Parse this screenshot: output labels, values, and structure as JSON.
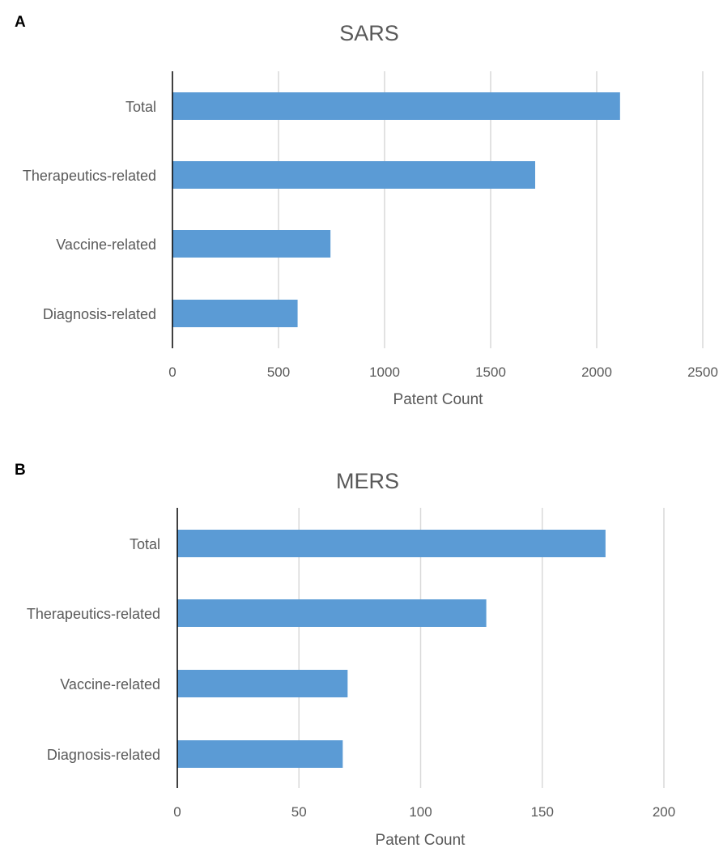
{
  "chart_data": [
    {
      "type": "bar",
      "orientation": "horizontal",
      "panel_label": "A",
      "title": "SARS",
      "xlabel": "Patent Count",
      "ylabel": "",
      "categories": [
        "Total",
        "Therapeutics-related",
        "Vaccine-related",
        "Diagnosis-related"
      ],
      "values": [
        2110,
        1710,
        745,
        590
      ],
      "xlim": [
        0,
        2500
      ],
      "xticks": [
        "0",
        "500",
        "1000",
        "1500",
        "2000",
        "2500"
      ],
      "bar_color": "#5b9bd5",
      "grid": true,
      "legend": "none"
    },
    {
      "type": "bar",
      "orientation": "horizontal",
      "panel_label": "B",
      "title": "MERS",
      "xlabel": "Patent Count",
      "ylabel": "",
      "categories": [
        "Total",
        "Therapeutics-related",
        "Vaccine-related",
        "Diagnosis-related"
      ],
      "values": [
        176,
        127,
        70,
        68
      ],
      "xlim": [
        0,
        200
      ],
      "xticks": [
        "0",
        "50",
        "100",
        "150",
        "200"
      ],
      "bar_color": "#5b9bd5",
      "grid": true,
      "legend": "none"
    }
  ]
}
